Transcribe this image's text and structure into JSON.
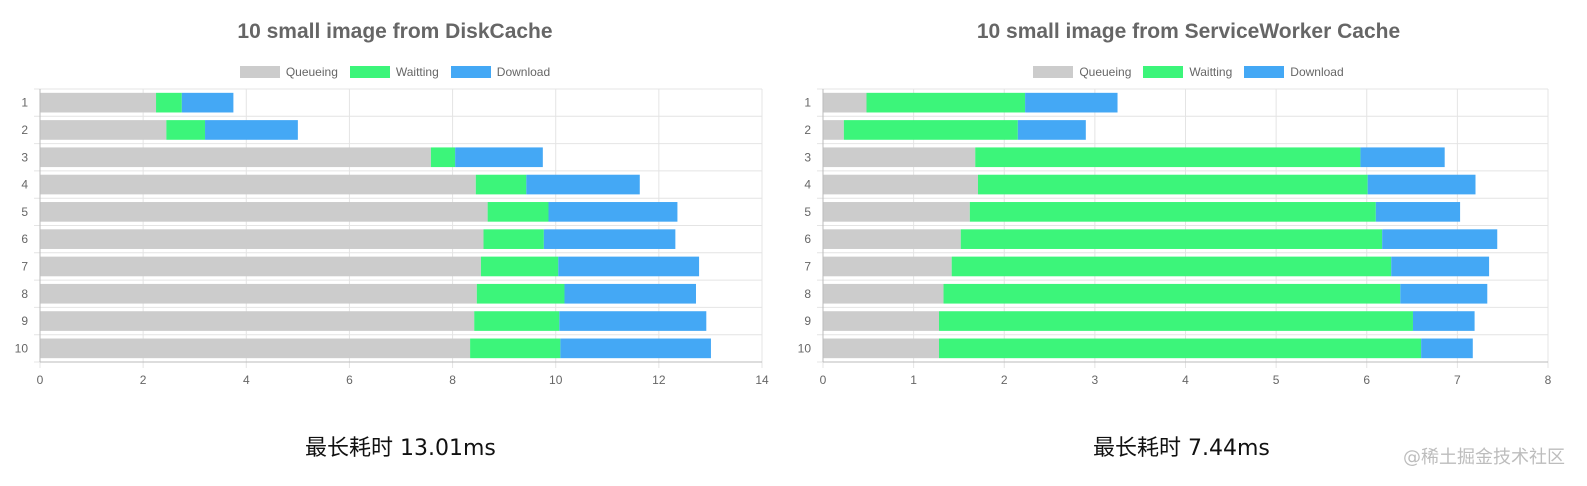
{
  "legend_labels": [
    "Queueing",
    "Waitting",
    "Download"
  ],
  "colors": {
    "queueing": "#cccccc",
    "waitting": "#3cf57a",
    "download": "#44a8f5",
    "grid": "#e4e4e4",
    "axis_text": "#666666"
  },
  "watermark": "@稀土掘金技术社区",
  "chart_data": [
    {
      "type": "bar",
      "orientation": "horizontal",
      "stacked": true,
      "title": "10 small image from DiskCache",
      "caption": "最长耗时 13.01ms",
      "categories": [
        "1",
        "2",
        "3",
        "4",
        "5",
        "6",
        "7",
        "8",
        "9",
        "10"
      ],
      "xlim": [
        0,
        14
      ],
      "xticks": [
        0,
        2,
        4,
        6,
        8,
        10,
        12,
        14
      ],
      "grid": true,
      "legend_position": "top-center",
      "series": [
        {
          "name": "Queueing",
          "values": [
            2.25,
            2.45,
            7.58,
            8.45,
            8.68,
            8.6,
            8.55,
            8.47,
            8.42,
            8.34
          ]
        },
        {
          "name": "Waitting",
          "values": [
            0.5,
            0.75,
            0.47,
            0.98,
            1.18,
            1.17,
            1.5,
            1.7,
            1.65,
            1.75
          ]
        },
        {
          "name": "Download",
          "values": [
            1.0,
            1.8,
            1.7,
            2.2,
            2.5,
            2.55,
            2.73,
            2.55,
            2.85,
            2.92
          ]
        }
      ]
    },
    {
      "type": "bar",
      "orientation": "horizontal",
      "stacked": true,
      "title": "10 small image from ServiceWorker Cache",
      "caption": "最长耗时 7.44ms",
      "categories": [
        "1",
        "2",
        "3",
        "4",
        "5",
        "6",
        "7",
        "8",
        "9",
        "10"
      ],
      "xlim": [
        0,
        8
      ],
      "xticks": [
        0,
        1,
        2,
        3,
        4,
        5,
        6,
        7,
        8
      ],
      "grid": true,
      "legend_position": "top-center",
      "series": [
        {
          "name": "Queueing",
          "values": [
            0.48,
            0.23,
            1.68,
            1.71,
            1.62,
            1.52,
            1.42,
            1.33,
            1.28,
            1.28
          ]
        },
        {
          "name": "Waitting",
          "values": [
            1.75,
            1.92,
            4.25,
            4.3,
            4.48,
            4.65,
            4.85,
            5.04,
            5.23,
            5.32
          ]
        },
        {
          "name": "Download",
          "values": [
            1.02,
            0.75,
            0.93,
            1.19,
            0.93,
            1.27,
            1.08,
            0.96,
            0.68,
            0.57
          ]
        }
      ]
    }
  ]
}
